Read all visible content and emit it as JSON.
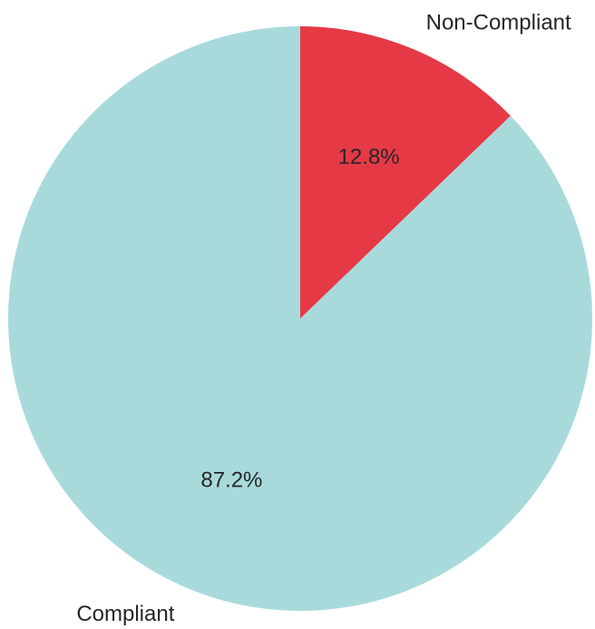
{
  "chart_data": {
    "type": "pie",
    "title": "",
    "slices": [
      {
        "label": "Non-Compliant",
        "value": 12.8,
        "pct_text": "12.8%",
        "color": "#e63946"
      },
      {
        "label": "Compliant",
        "value": 87.2,
        "pct_text": "87.2%",
        "color": "#a8dadc"
      }
    ],
    "start_angle": "top (12 o'clock)",
    "direction": "clockwise",
    "legend": "none"
  }
}
